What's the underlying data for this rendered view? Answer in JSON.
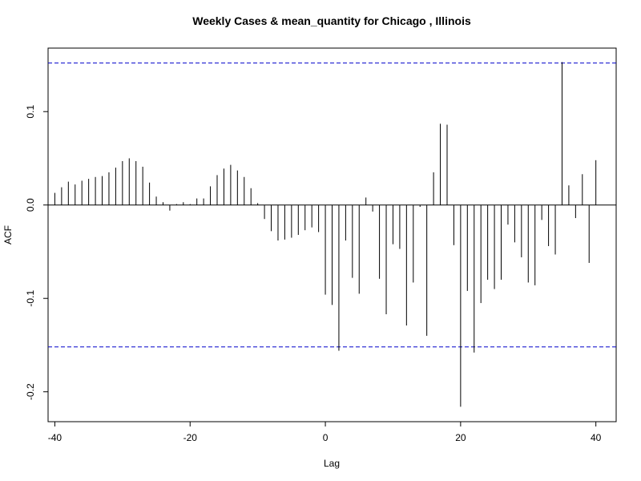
{
  "chart_data": {
    "type": "bar",
    "title": "Weekly Cases & mean_quantity for Chicago , Illinois",
    "xlabel": "Lag",
    "ylabel": "ACF",
    "xlim": [
      -41,
      43
    ],
    "ylim": [
      -0.232,
      0.168
    ],
    "x_ticks": [
      -40,
      -20,
      0,
      20,
      40
    ],
    "y_ticks": [
      -0.2,
      -0.1,
      0.0,
      0.1
    ],
    "y_tick_labels": [
      "-0.2",
      "-0.1",
      "0.0",
      "0.1"
    ],
    "confidence_band": 0.152,
    "grid": false,
    "lags": [
      -40,
      -39,
      -38,
      -37,
      -36,
      -35,
      -34,
      -33,
      -32,
      -31,
      -30,
      -29,
      -28,
      -27,
      -26,
      -25,
      -24,
      -23,
      -22,
      -21,
      -20,
      -19,
      -18,
      -17,
      -16,
      -15,
      -14,
      -13,
      -12,
      -11,
      -10,
      -9,
      -8,
      -7,
      -6,
      -5,
      -4,
      -3,
      -2,
      -1,
      0,
      1,
      2,
      3,
      4,
      5,
      6,
      7,
      8,
      9,
      10,
      11,
      12,
      13,
      14,
      15,
      16,
      17,
      18,
      19,
      20,
      21,
      22,
      23,
      24,
      25,
      26,
      27,
      28,
      29,
      30,
      31,
      32,
      33,
      34,
      35,
      36,
      37,
      38,
      39,
      40
    ],
    "values": [
      0.013,
      0.019,
      0.025,
      0.022,
      0.026,
      0.028,
      0.03,
      0.031,
      0.035,
      0.04,
      0.047,
      0.05,
      0.047,
      0.041,
      0.024,
      0.009,
      0.003,
      -0.006,
      0.001,
      0.003,
      0.001,
      0.007,
      0.007,
      0.02,
      0.032,
      0.039,
      0.043,
      0.037,
      0.03,
      0.018,
      0.002,
      -0.015,
      -0.028,
      -0.038,
      -0.037,
      -0.035,
      -0.032,
      -0.027,
      -0.024,
      -0.029,
      -0.096,
      -0.107,
      -0.156,
      -0.038,
      -0.078,
      -0.095,
      0.008,
      -0.007,
      -0.079,
      -0.117,
      -0.042,
      -0.047,
      -0.129,
      -0.083,
      -0.002,
      -0.14,
      0.035,
      0.087,
      0.086,
      -0.043,
      -0.216,
      -0.092,
      -0.158,
      -0.105,
      -0.08,
      -0.09,
      -0.08,
      -0.021,
      -0.04,
      -0.056,
      -0.083,
      -0.086,
      -0.016,
      -0.044,
      -0.053,
      0.153,
      0.021,
      -0.014,
      0.033,
      -0.062,
      0.048
    ],
    "colors": {
      "bars": "#000000",
      "band": "#0000cc",
      "zero_line": "#000000",
      "frame": "#000000"
    }
  }
}
